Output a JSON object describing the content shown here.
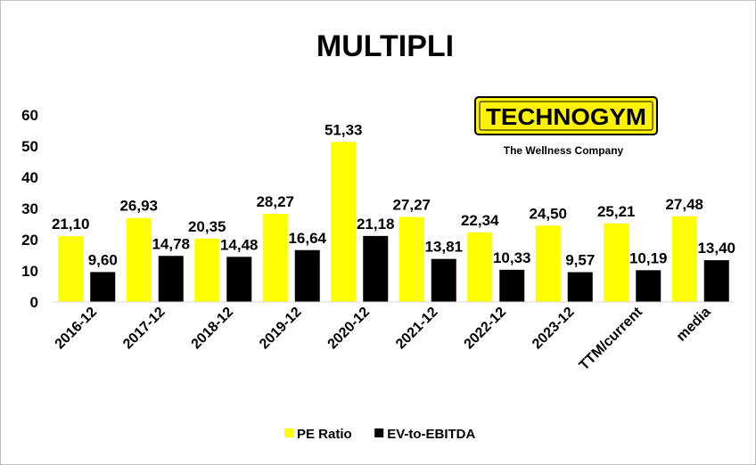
{
  "logo": {
    "wordmark": "TECHNOGYM",
    "tagline": "The Wellness Company",
    "colors": {
      "background": "#fff200",
      "text": "#000000"
    }
  },
  "chart_data": {
    "type": "bar",
    "title": "MULTIPLI",
    "categories": [
      "2016-12",
      "2017-12",
      "2018-12",
      "2019-12",
      "2020-12",
      "2021-12",
      "2022-12",
      "2023-12",
      "TTM/current",
      "media"
    ],
    "series": [
      {
        "name": "PE Ratio",
        "color": "#ffff00",
        "values": [
          21.1,
          26.93,
          20.35,
          28.27,
          51.33,
          27.27,
          22.34,
          24.5,
          25.21,
          27.48
        ],
        "labels": [
          "21,10",
          "26,93",
          "20,35",
          "28,27",
          "51,33",
          "27,27",
          "22,34",
          "24,50",
          "25,21",
          "27,48"
        ]
      },
      {
        "name": "EV-to-EBITDA",
        "color": "#000000",
        "values": [
          9.6,
          14.78,
          14.48,
          16.64,
          21.18,
          13.81,
          10.33,
          9.57,
          10.19,
          13.4
        ],
        "labels": [
          "9,60",
          "14,78",
          "14,48",
          "16,64",
          "21,18",
          "13,81",
          "10,33",
          "9,57",
          "10,19",
          "13,40"
        ]
      }
    ],
    "ylim": [
      0,
      60
    ],
    "yticks": [
      0,
      10,
      20,
      30,
      40,
      50,
      60
    ],
    "grid": false,
    "legend": "bottom",
    "xlabel": "",
    "ylabel": ""
  }
}
